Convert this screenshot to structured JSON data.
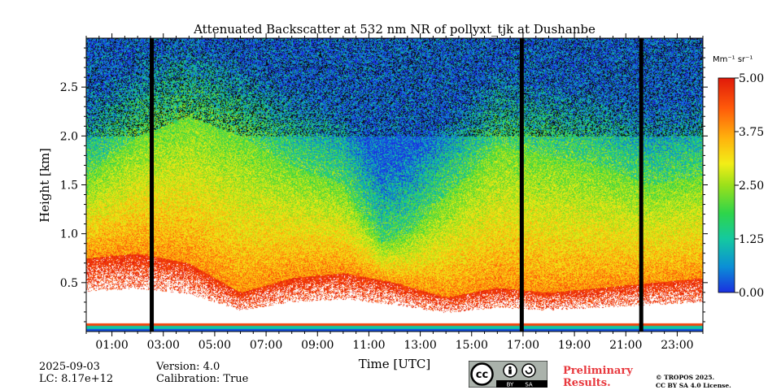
{
  "chart_data": {
    "type": "heatmap",
    "title": "Attenuated Backscatter at 532 nm NR of pollyxt_tjk at Dushanbe",
    "xlabel": "Time [UTC]",
    "ylabel": "Height [km]",
    "xlim": [
      0,
      24
    ],
    "ylim": [
      0,
      3.0
    ],
    "x_ticks": [
      1,
      3,
      5,
      7,
      9,
      11,
      13,
      15,
      17,
      19,
      21,
      23
    ],
    "x_tick_labels": [
      "01:00",
      "03:00",
      "05:00",
      "07:00",
      "09:00",
      "11:00",
      "13:00",
      "15:00",
      "17:00",
      "19:00",
      "21:00",
      "23:00"
    ],
    "y_ticks": [
      0.5,
      1.0,
      1.5,
      2.0,
      2.5
    ],
    "y_tick_labels": [
      "0.5",
      "1.0",
      "1.5",
      "2.0",
      "2.5"
    ],
    "colorbar": {
      "unit_label": "Mm⁻¹ sr⁻¹",
      "min": 0.0,
      "max": 5.0,
      "ticks": [
        0.0,
        1.25,
        2.5,
        3.75,
        5.0
      ],
      "tick_labels": [
        "0.00",
        "1.25",
        "2.50",
        "3.75",
        "5.00"
      ],
      "colormap": [
        "#1a2fe0",
        "#0b8fd6",
        "#14c9a0",
        "#2ed54a",
        "#9be01a",
        "#f2ee17",
        "#ffb20d",
        "#ff5a0a",
        "#e01a0a"
      ]
    },
    "data_gaps_utc": [
      2.55,
      16.95,
      21.6
    ],
    "layers": [
      {
        "name": "aerosol_layer_top_km",
        "times": [
          0,
          2,
          4,
          6,
          8,
          10,
          11.5,
          12.5,
          14,
          16,
          18,
          20,
          22,
          24
        ],
        "values": [
          1.6,
          2.0,
          2.2,
          2.0,
          1.7,
          1.5,
          0.9,
          1.0,
          1.4,
          1.9,
          1.8,
          1.7,
          1.5,
          1.6
        ]
      },
      {
        "name": "high_backscatter_base_km",
        "times": [
          0,
          2,
          4,
          6,
          8,
          10,
          12,
          14,
          16,
          18,
          20,
          22,
          24
        ],
        "values": [
          0.75,
          0.8,
          0.7,
          0.4,
          0.55,
          0.6,
          0.5,
          0.35,
          0.45,
          0.4,
          0.45,
          0.5,
          0.55
        ]
      }
    ]
  },
  "footer": {
    "date": "2025-09-03",
    "lc": "LC: 8.17e+12",
    "version": "Version: 4.0",
    "calibration": "Calibration: True",
    "preliminary_line1": "Preliminary",
    "preliminary_line2": "Results.",
    "license_line1": "© TROPOS 2025.",
    "license_line2": "CC BY SA 4.0 License.",
    "badge_by": "BY",
    "badge_sa": "SA",
    "badge_cc": "cc"
  },
  "colors": {
    "preliminary": "#e8383d"
  }
}
